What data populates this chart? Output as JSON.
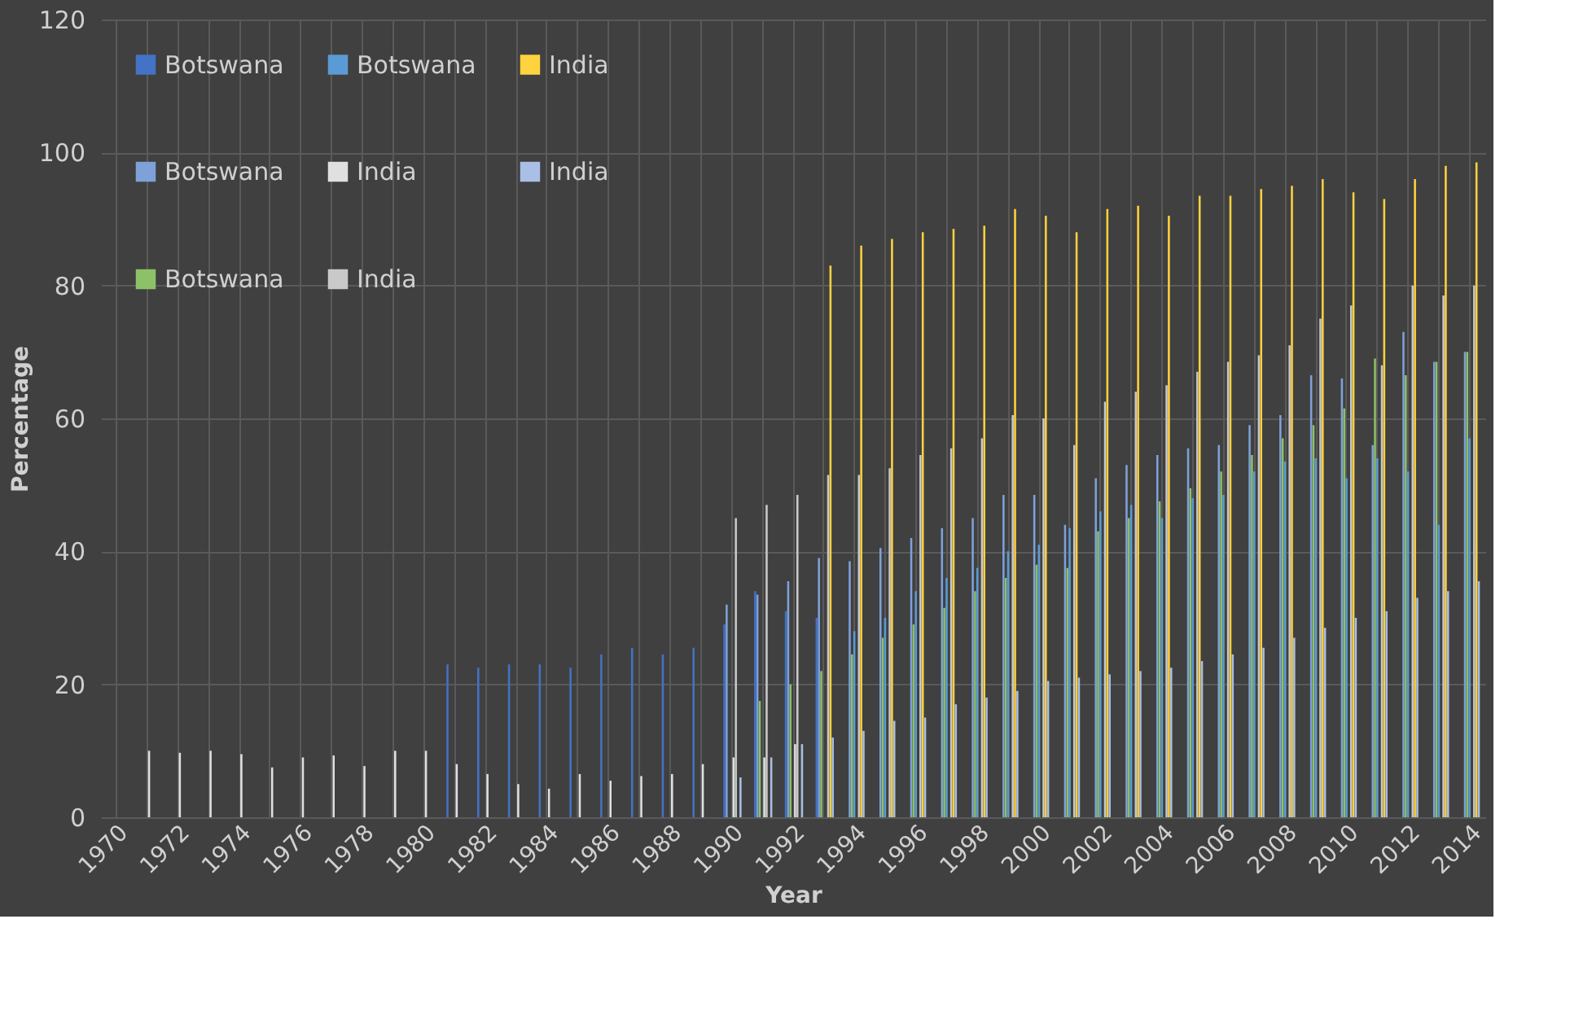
{
  "chart_data": {
    "type": "bar",
    "xlabel": "Year",
    "ylabel": "Percentage",
    "categories": [
      "1970",
      null,
      "1972",
      null,
      "1974",
      null,
      "1976",
      null,
      "1978",
      null,
      "1980",
      null,
      "1982",
      null,
      "1984",
      null,
      "1986",
      null,
      "1988",
      null,
      "1990",
      null,
      "1992",
      null,
      "1994",
      null,
      "1996",
      null,
      "1998",
      null,
      "2000",
      null,
      "2002",
      null,
      "2004",
      null,
      "2006",
      null,
      "2008",
      null,
      "2010",
      null,
      "2012",
      null,
      "2014"
    ],
    "series": [
      {
        "name": "Botswana",
        "color": "#4472c4",
        "values": [
          null,
          null,
          null,
          null,
          null,
          null,
          null,
          null,
          null,
          null,
          null,
          23,
          22.5,
          23,
          23,
          22.5,
          24.5,
          25.5,
          24.5,
          25.5,
          29,
          34,
          31,
          30,
          null,
          null,
          null,
          null,
          null,
          null,
          null,
          null,
          null,
          null,
          null,
          null,
          null,
          null,
          null,
          null,
          null,
          null,
          null,
          null,
          null
        ]
      },
      {
        "name": "Botswana",
        "color": "#7ea1d8",
        "values": [
          null,
          null,
          null,
          null,
          null,
          null,
          null,
          null,
          null,
          null,
          null,
          null,
          null,
          null,
          null,
          null,
          null,
          null,
          null,
          null,
          32,
          33.5,
          35.5,
          39,
          38.5,
          40.5,
          42,
          43.5,
          45,
          48.5,
          48.5,
          44,
          51,
          53,
          54.5,
          55.5,
          56,
          59,
          60.5,
          66.5,
          66,
          56,
          73,
          68.5,
          70
        ]
      },
      {
        "name": "Botswana",
        "color": "#8cc168",
        "values": [
          null,
          null,
          null,
          null,
          null,
          null,
          null,
          null,
          null,
          null,
          null,
          null,
          null,
          null,
          null,
          null,
          null,
          null,
          null,
          null,
          null,
          17.5,
          20,
          22,
          24.5,
          27,
          29,
          31.5,
          34,
          36,
          38,
          37.5,
          43,
          45,
          47.5,
          49.5,
          52,
          54.5,
          57,
          59,
          61.5,
          69,
          66.5,
          68.5,
          70
        ]
      },
      {
        "name": "Botswana",
        "color": "#5b9bd5",
        "values": [
          null,
          null,
          null,
          null,
          null,
          null,
          null,
          null,
          null,
          null,
          null,
          null,
          null,
          null,
          null,
          null,
          null,
          null,
          null,
          null,
          null,
          null,
          null,
          null,
          28,
          30,
          34,
          36,
          37.5,
          40,
          41,
          43.5,
          46,
          47,
          45,
          48,
          48.5,
          52,
          53.5,
          54,
          51,
          54,
          52,
          44,
          57
        ]
      },
      {
        "name": "India",
        "color": "#e0e0e0",
        "values": [
          null,
          10,
          9.7,
          10,
          9.5,
          7.5,
          9,
          9.3,
          7.7,
          10,
          10,
          8,
          6.5,
          5,
          4.3,
          6.5,
          5.5,
          6.2,
          6.5,
          8,
          9,
          9,
          11,
          null,
          null,
          null,
          null,
          null,
          null,
          null,
          null,
          null,
          null,
          null,
          null,
          null,
          null,
          null,
          null,
          null,
          null,
          null,
          null,
          null,
          null
        ]
      },
      {
        "name": "India",
        "color": "#c9c9c9",
        "values": [
          null,
          null,
          null,
          null,
          null,
          null,
          null,
          null,
          null,
          null,
          null,
          null,
          null,
          null,
          null,
          null,
          null,
          null,
          null,
          null,
          45,
          47,
          48.5,
          51.5,
          51.5,
          52.5,
          54.5,
          55.5,
          57,
          60.5,
          60,
          56,
          62.5,
          64,
          65,
          67,
          68.5,
          69.5,
          71,
          75,
          77,
          68,
          80,
          78.5,
          80
        ]
      },
      {
        "name": "India",
        "color": "#ffd23f",
        "values": [
          null,
          null,
          null,
          null,
          null,
          null,
          null,
          null,
          null,
          null,
          null,
          null,
          null,
          null,
          null,
          null,
          null,
          null,
          null,
          null,
          null,
          null,
          null,
          83,
          86,
          87,
          88,
          88.5,
          89,
          91.5,
          90.5,
          88,
          91.5,
          92,
          90.5,
          93.5,
          93.5,
          94.5,
          95,
          96,
          94,
          93,
          96,
          98,
          98.5
        ]
      },
      {
        "name": "India",
        "color": "#a9bfe6",
        "values": [
          null,
          null,
          null,
          null,
          null,
          null,
          null,
          null,
          null,
          null,
          null,
          null,
          null,
          null,
          null,
          null,
          null,
          null,
          null,
          null,
          6,
          9,
          11,
          12,
          13,
          14.5,
          15,
          17,
          18,
          19,
          20.5,
          21,
          21.5,
          22,
          22.5,
          23.5,
          24.5,
          25.5,
          27,
          28.5,
          30,
          31,
          33,
          34,
          35.5
        ]
      }
    ],
    "ylim": [
      0,
      120
    ],
    "yticks": [
      0,
      20,
      40,
      60,
      80,
      100,
      120
    ],
    "grid": true,
    "legend": "top left"
  }
}
